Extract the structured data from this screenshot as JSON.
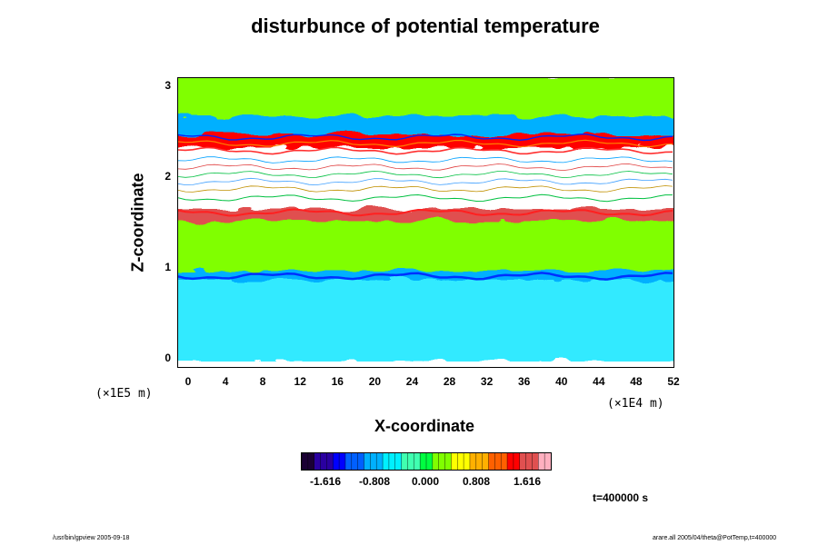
{
  "title": "disturbunce of potential temperature",
  "axes": {
    "xlabel": "X-coordinate",
    "ylabel": "Z-coordinate",
    "x_ticks": [
      "0",
      "4",
      "8",
      "12",
      "16",
      "20",
      "24",
      "28",
      "32",
      "36",
      "40",
      "44",
      "48",
      "52"
    ],
    "y_ticks": [
      "0",
      "1",
      "2",
      "3"
    ],
    "x_scale_note": "(×1E4 m)",
    "y_scale_note": "(×1E5 m)"
  },
  "colorbar": {
    "ticks": [
      "-1.616",
      "-0.808",
      "0.000",
      "0.808",
      "1.616"
    ],
    "colors": [
      "#1a0033",
      "#2a00a0",
      "#0000ff",
      "#0060ff",
      "#00b0ff",
      "#00f0ff",
      "#40ffb0",
      "#00ff40",
      "#80ff00",
      "#ffff00",
      "#ffb000",
      "#ff6000",
      "#ff0000",
      "#e05050",
      "#ffb0c0"
    ]
  },
  "time_label": "t=400000 s",
  "footer_left": "/usr/bin/gpview 2005-09-18",
  "footer_right": "arare.all 2005/04/theta@PotTemp,t=400000",
  "chart_data": {
    "type": "heatmap",
    "title": "disturbunce of potential temperature",
    "xlabel": "X-coordinate",
    "ylabel": "Z-coordinate",
    "xlim": [
      0,
      52
    ],
    "ylim": [
      0,
      3
    ],
    "x_units": "×1E4 m",
    "y_units": "×1E5 m",
    "colorbar_ticks": [
      -1.616,
      -0.808,
      0.0,
      0.808,
      1.616
    ],
    "layers": [
      {
        "z_range": [
          0.0,
          0.9
        ],
        "value": -0.4
      },
      {
        "z_range": [
          0.9,
          1.0
        ],
        "value": -1.0
      },
      {
        "z_range": [
          1.0,
          1.55
        ],
        "value": 0.3
      },
      {
        "z_range": [
          1.55,
          1.68
        ],
        "value": 1.6
      },
      {
        "z_range": [
          1.68,
          2.35
        ],
        "value": 2.5
      },
      {
        "z_range": [
          2.35,
          2.5
        ],
        "value": 1.4
      },
      {
        "z_range": [
          2.5,
          2.7
        ],
        "value": -1.0
      },
      {
        "z_range": [
          2.7,
          3.1
        ],
        "value": 0.3
      }
    ],
    "grid": false
  }
}
